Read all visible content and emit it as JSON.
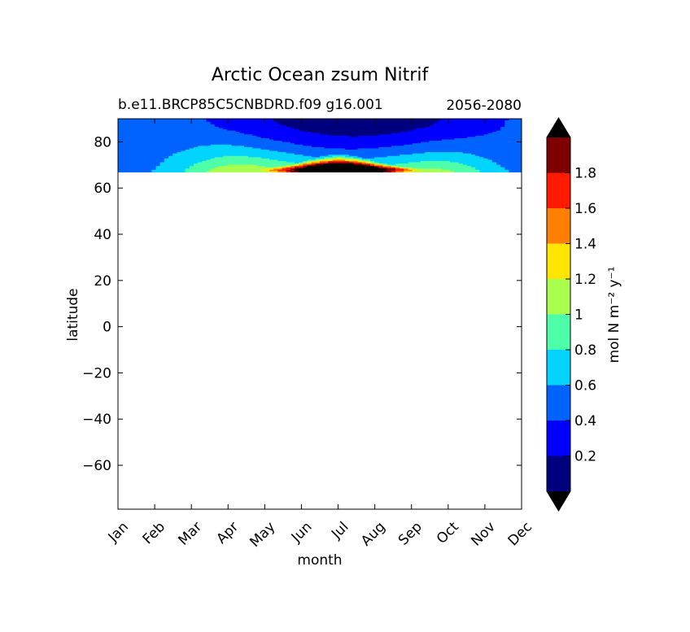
{
  "chart_data": {
    "type": "heatmap",
    "title": "Arctic Ocean zsum Nitrif",
    "subtitle_left": "b.e11.BRCP85C5CNBDRD.f09 g16.001",
    "subtitle_right": "2056-2080",
    "xlabel": "month",
    "ylabel": "latitude",
    "x_categories": [
      "Jan",
      "Feb",
      "Mar",
      "Apr",
      "May",
      "Jun",
      "Jul",
      "Aug",
      "Sep",
      "Oct",
      "Nov",
      "Dec"
    ],
    "x_index_range": [
      0,
      11
    ],
    "ylim": [
      -79,
      90
    ],
    "y_ticks": [
      80,
      60,
      40,
      20,
      0,
      -20,
      -40,
      -60
    ],
    "y_tick_labels": [
      "80",
      "60",
      "40",
      "20",
      "0",
      "−20",
      "−40",
      "−60"
    ],
    "data_lat_range": [
      67,
      90
    ],
    "colorbar": {
      "label": "mol N m⁻² y⁻¹",
      "levels": [
        0,
        0.2,
        0.4,
        0.6,
        0.8,
        1.0,
        1.2,
        1.4,
        1.6,
        1.8,
        2.0
      ],
      "tick_values": [
        0.2,
        0.4,
        0.6,
        0.8,
        1.0,
        1.2,
        1.4,
        1.6,
        1.8
      ],
      "tick_labels": [
        "0.2",
        "0.4",
        "0.6",
        "0.8",
        "1",
        "1.2",
        "1.4",
        "1.6",
        "1.8"
      ],
      "colors": [
        "#00007f",
        "#0000ff",
        "#0063ff",
        "#00d4ff",
        "#4effa9",
        "#a9ff4e",
        "#ffe500",
        "#ff7f00",
        "#ff1a00",
        "#7f0000"
      ],
      "over_color": "#000000",
      "under_color": "#000000",
      "extend": "both"
    }
  }
}
